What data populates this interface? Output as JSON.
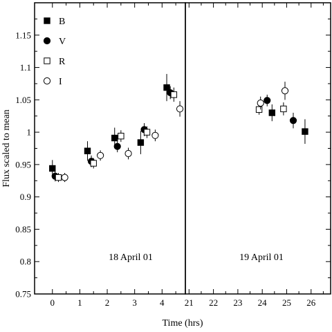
{
  "chart_data": {
    "type": "scatter",
    "xlabel": "Time (hrs)",
    "ylabel": "Flux scaled to mean",
    "ylim": [
      0.75,
      1.2
    ],
    "yticks": [
      0.75,
      0.8,
      0.85,
      0.9,
      0.95,
      1,
      1.05,
      1.1,
      1.15
    ],
    "ytick_labels": [
      "0.75",
      "0.8",
      "0.85",
      "0.9",
      "0.95",
      "1",
      "1.05",
      "1.1",
      "1.15"
    ],
    "legend_position": "top-left",
    "panels": [
      {
        "label": "18 April 01",
        "xlim": [
          -0.65,
          4.85
        ],
        "xticks": [
          0,
          1,
          2,
          3,
          4
        ],
        "xtick_labels": [
          "0",
          "1",
          "2",
          "3",
          "4"
        ]
      },
      {
        "label": "19 April 01",
        "xlim": [
          20.85,
          26.8
        ],
        "xticks": [
          21,
          22,
          23,
          24,
          25,
          26
        ],
        "xtick_labels": [
          "21",
          "22",
          "23",
          "24",
          "25",
          "26"
        ]
      }
    ],
    "series": [
      {
        "name": "B",
        "marker": "filled-square",
        "points": [
          {
            "x": 0.0,
            "y": 0.944,
            "err": 0.013
          },
          {
            "x": 1.28,
            "y": 0.971,
            "err": 0.015
          },
          {
            "x": 2.27,
            "y": 0.991,
            "err": 0.016
          },
          {
            "x": 3.22,
            "y": 0.984,
            "err": 0.018
          },
          {
            "x": 4.17,
            "y": 1.069,
            "err": 0.021
          },
          {
            "x": 24.4,
            "y": 1.03,
            "err": 0.013
          },
          {
            "x": 25.75,
            "y": 1.001,
            "err": 0.019
          }
        ]
      },
      {
        "name": "V",
        "marker": "filled-circle",
        "points": [
          {
            "x": 0.1,
            "y": 0.932,
            "err": 0.008
          },
          {
            "x": 1.42,
            "y": 0.955,
            "err": 0.009
          },
          {
            "x": 2.37,
            "y": 0.978,
            "err": 0.009
          },
          {
            "x": 3.35,
            "y": 1.004,
            "err": 0.01
          },
          {
            "x": 4.3,
            "y": 1.061,
            "err": 0.01
          },
          {
            "x": 24.2,
            "y": 1.049,
            "err": 0.009
          },
          {
            "x": 25.27,
            "y": 1.018,
            "err": 0.012
          }
        ]
      },
      {
        "name": "R",
        "marker": "open-square",
        "points": [
          {
            "x": 0.22,
            "y": 0.93,
            "err": 0.007
          },
          {
            "x": 1.5,
            "y": 0.952,
            "err": 0.008
          },
          {
            "x": 2.5,
            "y": 0.994,
            "err": 0.009
          },
          {
            "x": 3.45,
            "y": 1.0,
            "err": 0.009
          },
          {
            "x": 4.43,
            "y": 1.058,
            "err": 0.011
          },
          {
            "x": 23.87,
            "y": 1.035,
            "err": 0.008
          },
          {
            "x": 24.87,
            "y": 1.036,
            "err": 0.01
          }
        ]
      },
      {
        "name": "I",
        "marker": "open-circle",
        "points": [
          {
            "x": 0.45,
            "y": 0.93,
            "err": 0.007
          },
          {
            "x": 1.75,
            "y": 0.964,
            "err": 0.008
          },
          {
            "x": 2.77,
            "y": 0.967,
            "err": 0.009
          },
          {
            "x": 3.75,
            "y": 0.995,
            "err": 0.009
          },
          {
            "x": 4.65,
            "y": 1.036,
            "err": 0.012
          },
          {
            "x": 23.93,
            "y": 1.045,
            "err": 0.01
          },
          {
            "x": 24.93,
            "y": 1.064,
            "err": 0.014
          }
        ]
      }
    ]
  }
}
